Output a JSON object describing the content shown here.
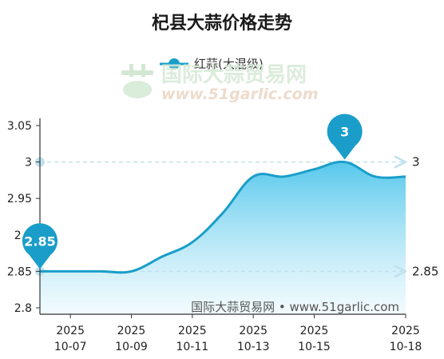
{
  "title": "杞县大蒜价格走势",
  "legend_label": "红蒜(大混级)",
  "watermark": {
    "cn": "国际大蒜贸易网",
    "url": "www.51garlic.com"
  },
  "footer_credit": "国际大蒜贸易网 • www.51garlic.com",
  "colors": {
    "line": "#1a9ec9",
    "area_top": "#56c8ec",
    "area_bottom": "#eaf8fd",
    "guide": "#bfe2ee",
    "pin": "#1a9ec9"
  },
  "chart_data": {
    "type": "area",
    "title": "杞县大蒜价格走势",
    "xlabel": "",
    "ylabel": "",
    "ylim": [
      2.8,
      3.05
    ],
    "yticks": [
      "3.05",
      "3",
      "2.95",
      "2.9",
      "2.85",
      "2.8"
    ],
    "xticks": [
      {
        "date": "2025-10-06",
        "year": "2025",
        "md": "10-07"
      },
      {
        "date": "2025-10-08",
        "year": "2025",
        "md": "10-09"
      },
      {
        "date": "2025-10-10",
        "year": "2025",
        "md": "10-11"
      },
      {
        "date": "2025-10-12",
        "year": "2025",
        "md": "10-13"
      },
      {
        "date": "2025-10-14",
        "year": "2025",
        "md": "10-15"
      },
      {
        "date": "2025-10-17",
        "year": "2025",
        "md": "10-18"
      }
    ],
    "grid": false,
    "legend_position": "top",
    "series": [
      {
        "name": "红蒜(大混级)",
        "x": [
          "2025-10-05",
          "2025-10-06",
          "2025-10-07",
          "2025-10-08",
          "2025-10-09",
          "2025-10-10",
          "2025-10-11",
          "2025-10-12",
          "2025-10-13",
          "2025-10-14",
          "2025-10-15",
          "2025-10-16",
          "2025-10-17"
        ],
        "values": [
          2.85,
          2.85,
          2.85,
          2.85,
          2.87,
          2.89,
          2.93,
          2.98,
          2.98,
          2.99,
          3.0,
          2.98,
          2.98
        ]
      }
    ],
    "guides": [
      {
        "value": 3,
        "label": "3"
      },
      {
        "value": 2.85,
        "label": "2.85"
      }
    ],
    "pins": [
      {
        "date": "2025-10-05",
        "value": 2.85,
        "label": "2.85"
      },
      {
        "date": "2025-10-15",
        "value": 3,
        "label": "3"
      }
    ]
  }
}
